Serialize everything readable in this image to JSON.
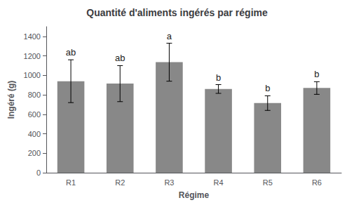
{
  "chart_data": {
    "type": "bar",
    "title": "Quantité d'aliments ingérés par régime",
    "xlabel": "Régime",
    "ylabel": "Ingéré (g)",
    "categories": [
      "R1",
      "R2",
      "R3",
      "R4",
      "R5",
      "R6"
    ],
    "values": [
      940,
      915,
      1135,
      860,
      715,
      870
    ],
    "errors": [
      220,
      185,
      195,
      45,
      75,
      65
    ],
    "annotations": [
      "ab",
      "ab",
      "a",
      "b",
      "b",
      "b"
    ],
    "color": "#888888",
    "ylim": [
      0,
      1500
    ],
    "yticks": [
      0,
      200,
      400,
      600,
      800,
      1000,
      1200,
      1400
    ],
    "grid": false
  }
}
